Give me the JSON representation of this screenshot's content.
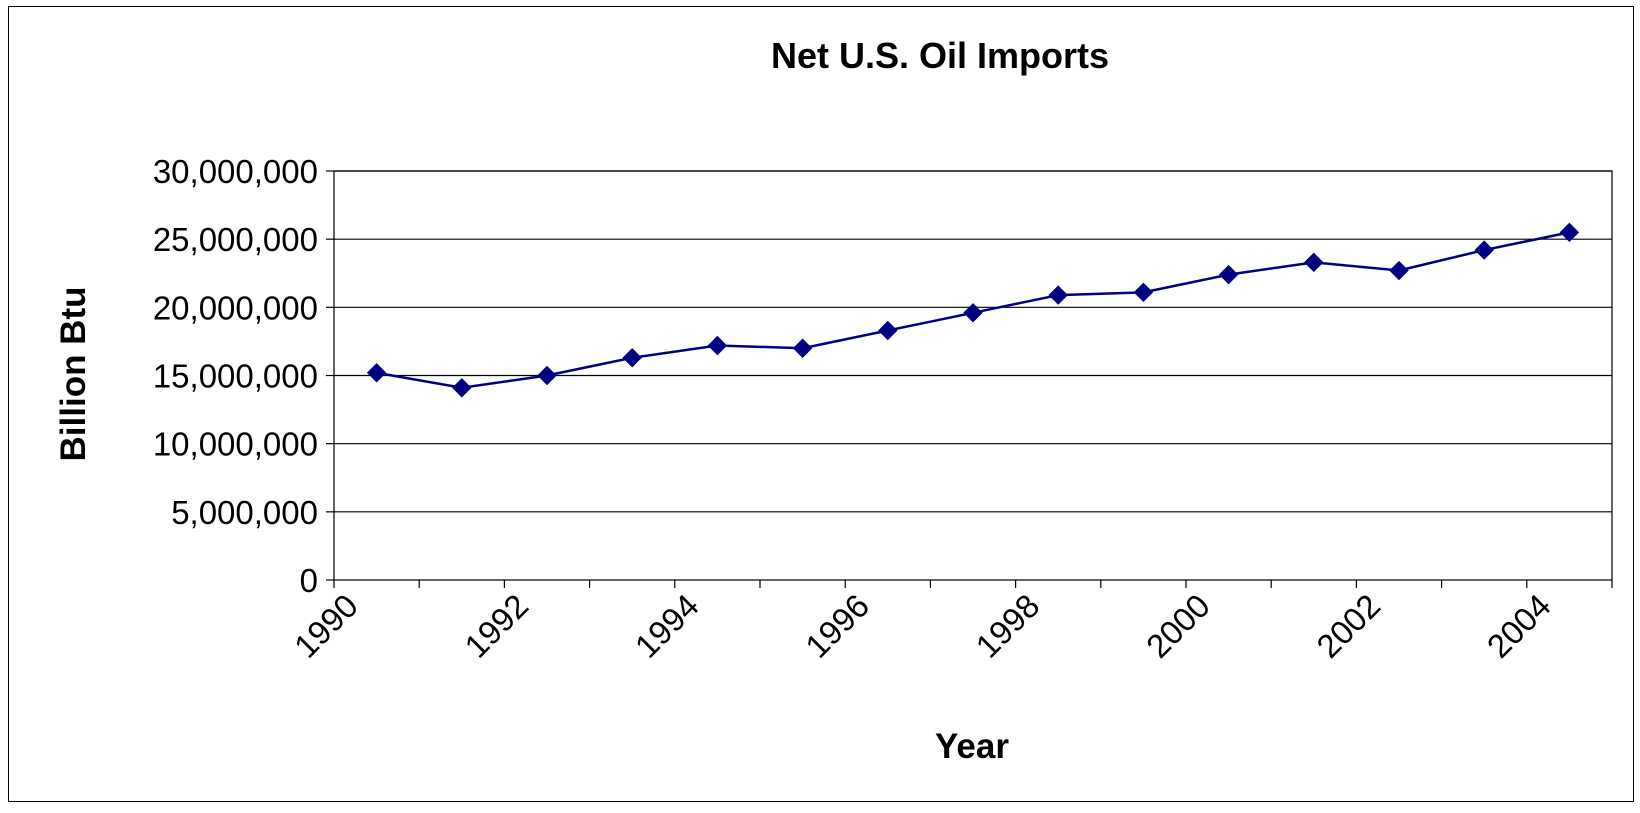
{
  "chart_data": {
    "type": "line",
    "title": "Net U.S. Oil Imports",
    "xlabel": "Year",
    "ylabel": "Billion Btu",
    "ylim": [
      0,
      30000000
    ],
    "yticks": [
      "0",
      "5,000,000",
      "10,000,000",
      "15,000,000",
      "20,000,000",
      "25,000,000",
      "30,000,000"
    ],
    "xtick_labels": [
      "1990",
      "1992",
      "1994",
      "1996",
      "1998",
      "2000",
      "2002",
      "2004"
    ],
    "grid": "horizontal",
    "legend": "none",
    "series": [
      {
        "color": "#000080",
        "marker": "diamond",
        "x": [
          1990,
          1991,
          1992,
          1993,
          1994,
          1995,
          1996,
          1997,
          1998,
          1999,
          2000,
          2001,
          2002,
          2003,
          2004
        ],
        "values": [
          15200000,
          14100000,
          15000000,
          16300000,
          17200000,
          17000000,
          18300000,
          19600000,
          20900000,
          21100000,
          22400000,
          23300000,
          22700000,
          24200000,
          25500000
        ]
      }
    ]
  }
}
